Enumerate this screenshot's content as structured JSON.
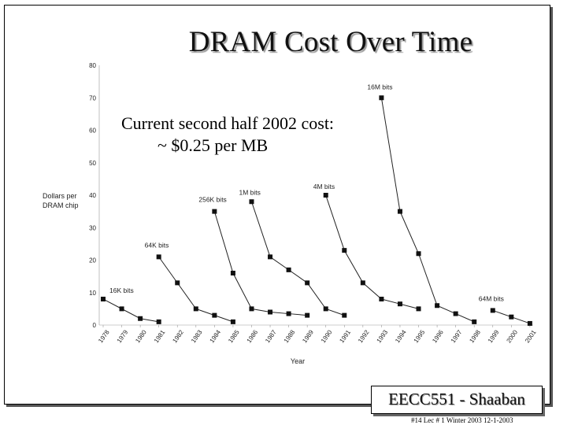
{
  "slide": {
    "title": "DRAM Cost Over Time",
    "note_line1": "Current second half 2002 cost:",
    "note_line2": "~ $0.25  per MB",
    "badge": "EECC551 - Shaaban",
    "footer": "#14   Lec # 1  Winter 2003   12-1-2003"
  },
  "chart_data": {
    "type": "line",
    "title": "",
    "xlabel": "Year",
    "ylabel_line1": "Dollars per",
    "ylabel_line2": "DRAM chip",
    "ylim": [
      0,
      80
    ],
    "y_ticks": [
      "0",
      "10",
      "20",
      "30",
      "40",
      "50",
      "60",
      "70",
      "80"
    ],
    "x_ticks": [
      "1978",
      "1979",
      "1980",
      "1981",
      "1982",
      "1983",
      "1984",
      "1985",
      "1986",
      "1987",
      "1988",
      "1989",
      "1990",
      "1991",
      "1992",
      "1993",
      "1994",
      "1995",
      "1996",
      "1997",
      "1998",
      "1999",
      "2000",
      "2001"
    ],
    "grid": false,
    "marker_color": "#111111",
    "series": [
      {
        "name": "16K bits",
        "x": [
          1978,
          1979,
          1980,
          1981
        ],
        "y": [
          8,
          5,
          2,
          1
        ]
      },
      {
        "name": "64K bits",
        "x": [
          1981,
          1982,
          1983,
          1984,
          1985
        ],
        "y": [
          21,
          13,
          5,
          3,
          1
        ]
      },
      {
        "name": "256K bits",
        "x": [
          1984,
          1985,
          1986,
          1987,
          1988,
          1989
        ],
        "y": [
          35,
          16,
          5,
          4,
          3.5,
          3
        ]
      },
      {
        "name": "1M bits",
        "x": [
          1986,
          1987,
          1988,
          1989,
          1990,
          1991
        ],
        "y": [
          38,
          21,
          17,
          13,
          5,
          3
        ]
      },
      {
        "name": "4M bits",
        "x": [
          1990,
          1991,
          1992,
          1993,
          1994,
          1995
        ],
        "y": [
          40,
          23,
          13,
          8,
          6.5,
          5
        ]
      },
      {
        "name": "16M bits",
        "x": [
          1993,
          1994,
          1995,
          1996,
          1997,
          1998
        ],
        "y": [
          70,
          35,
          22,
          6,
          3.5,
          1
        ]
      },
      {
        "name": "64M bits",
        "x": [
          1999,
          2000,
          2001
        ],
        "y": [
          4.5,
          2.5,
          0.5
        ]
      }
    ]
  }
}
